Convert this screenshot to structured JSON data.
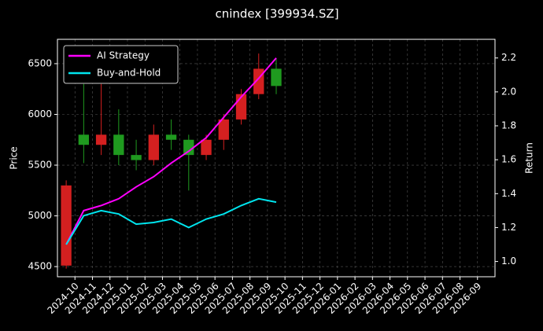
{
  "chart_data": {
    "type": "candlestick",
    "title": "cnindex [399934.SZ]",
    "ylabel": "Price",
    "y2label": "Return",
    "x": [
      "2024-09",
      "2024-10",
      "2024-11",
      "2024-12",
      "2025-01",
      "2025-02",
      "2025-03",
      "2025-04",
      "2025-05",
      "2025-06",
      "2025-07",
      "2025-08",
      "2025-09"
    ],
    "ohlc": {
      "open": [
        4510,
        5800,
        5700,
        5800,
        5600,
        5550,
        5800,
        5750,
        5600,
        5750,
        5950,
        6200,
        6450
      ],
      "high": [
        5350,
        6300,
        6300,
        6050,
        5750,
        5900,
        5950,
        5800,
        5800,
        6000,
        6250,
        6600,
        6550
      ],
      "low": [
        4480,
        5520,
        5600,
        5500,
        5450,
        5500,
        5650,
        5250,
        5550,
        5650,
        5900,
        6150,
        6200
      ],
      "close": [
        5300,
        5700,
        5800,
        5600,
        5550,
        5800,
        5750,
        5600,
        5750,
        5950,
        6200,
        6450,
        6280
      ],
      "up_color": "#d42020",
      "down_color": "#1f9a1f"
    },
    "series": [
      {
        "name": "AI Strategy",
        "color": "#ff00ff",
        "axis": "y2",
        "values": [
          1.1,
          1.3,
          1.33,
          1.37,
          1.44,
          1.5,
          1.58,
          1.65,
          1.73,
          1.85,
          1.97,
          2.08,
          2.2
        ]
      },
      {
        "name": "Buy-and-Hold",
        "color": "#00e5ee",
        "axis": "y2",
        "values": [
          1.1,
          1.27,
          1.3,
          1.28,
          1.22,
          1.23,
          1.25,
          1.2,
          1.25,
          1.28,
          1.33,
          1.37,
          1.35
        ]
      }
    ],
    "xlim": [
      "2024-09",
      "2026-10"
    ],
    "xticks": [
      "2024-10",
      "2024-11",
      "2024-12",
      "2025-01",
      "2025-02",
      "2025-03",
      "2025-04",
      "2025-05",
      "2025-06",
      "2025-07",
      "2025-08",
      "2025-09",
      "2025-10",
      "2025-11",
      "2025-12",
      "2026-01",
      "2026-02",
      "2026-03",
      "2026-04",
      "2026-05",
      "2026-06",
      "2026-07",
      "2026-08",
      "2026-09"
    ],
    "ylim": [
      4400,
      6740
    ],
    "yticks": [
      4500,
      5000,
      5500,
      6000,
      6500
    ],
    "y2lim": [
      0.91,
      2.31
    ],
    "y2ticks": [
      {
        "value": 1.0,
        "label": "1.0"
      },
      1.2,
      1.4,
      1.6,
      1.8,
      {
        "value": 2.0,
        "label": "2.0"
      },
      2.2
    ],
    "grid": true,
    "legend": "upper left"
  }
}
